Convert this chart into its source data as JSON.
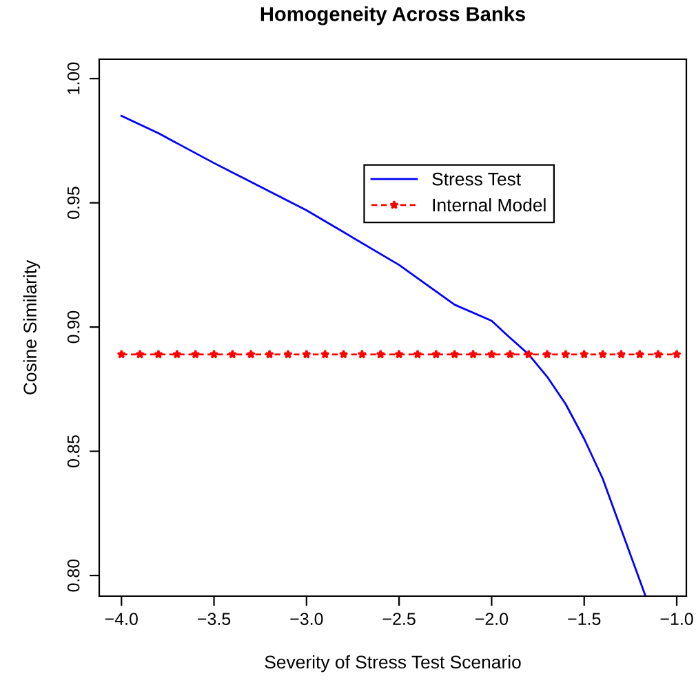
{
  "chart_data": {
    "type": "line",
    "title": "Homogeneity Across Banks",
    "xlabel": "Severity of Stress Test Scenario",
    "ylabel": "Cosine Similarity",
    "xlim": [
      -4.12,
      -0.948
    ],
    "xticks": [
      {
        "value": -4,
        "label": "−4.0"
      },
      {
        "value": -3.5,
        "label": "−3.5"
      },
      {
        "value": -3,
        "label": "−3.0"
      },
      {
        "value": -2.5,
        "label": "−2.5"
      },
      {
        "value": -2,
        "label": "−2.0"
      },
      {
        "value": -1.5,
        "label": "−1.5"
      },
      {
        "value": -1,
        "label": "−1.0"
      }
    ],
    "ylim": [
      0.7917,
      1.0078
    ],
    "yticks": [
      {
        "value": 0.8,
        "label": "0.80"
      },
      {
        "value": 0.85,
        "label": "0.85"
      },
      {
        "value": 0.9,
        "label": "0.90"
      },
      {
        "value": 0.95,
        "label": "0.95"
      },
      {
        "value": 1.0,
        "label": "1.00"
      }
    ],
    "grid": false,
    "legend": "top right",
    "series": [
      {
        "name": "Stress Test",
        "color": "#0000ff",
        "line_style": "solid",
        "marker": "none",
        "x": [
          -4.0,
          -3.8,
          -3.5,
          -3.0,
          -2.5,
          -2.2,
          -2.0,
          -1.92,
          -1.8,
          -1.7,
          -1.6,
          -1.5,
          -1.4,
          -1.17
        ],
        "values": [
          0.985,
          0.978,
          0.966,
          0.947,
          0.925,
          0.909,
          0.9025,
          0.897,
          0.889,
          0.88,
          0.869,
          0.855,
          0.839,
          0.792
        ]
      },
      {
        "name": "Internal Model",
        "color": "#ff0000",
        "line_style": "dashed",
        "marker": "star",
        "x": [
          -4.0,
          -3.9,
          -3.8,
          -3.7,
          -3.6,
          -3.5,
          -3.4,
          -3.3,
          -3.2,
          -3.1,
          -3.0,
          -2.9,
          -2.8,
          -2.7,
          -2.6,
          -2.5,
          -2.4,
          -2.3,
          -2.2,
          -2.1,
          -2.0,
          -1.9,
          -1.8,
          -1.7,
          -1.6,
          -1.5,
          -1.4,
          -1.3,
          -1.2,
          -1.1,
          -1.0
        ],
        "values": [
          0.889,
          0.889,
          0.889,
          0.889,
          0.889,
          0.889,
          0.889,
          0.889,
          0.889,
          0.889,
          0.889,
          0.889,
          0.889,
          0.889,
          0.889,
          0.889,
          0.889,
          0.889,
          0.889,
          0.889,
          0.889,
          0.889,
          0.889,
          0.889,
          0.889,
          0.889,
          0.889,
          0.889,
          0.889,
          0.889,
          0.889
        ]
      }
    ]
  }
}
